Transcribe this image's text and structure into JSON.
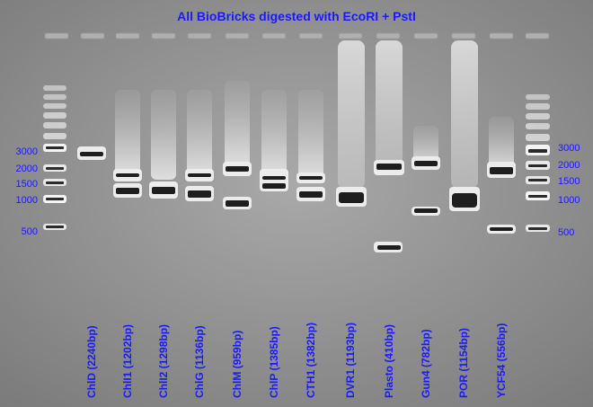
{
  "title": "All BioBricks digested with EcoRI + PstI",
  "ladder_labels_left": [
    "3000",
    "2000",
    "1500",
    "1000",
    "500"
  ],
  "ladder_labels_right": [
    "3000",
    "2000",
    "1500",
    "1000",
    "500"
  ],
  "lanes": [
    {
      "label": "ChlD (2240bp)"
    },
    {
      "label": "ChlI1 (1202bp)"
    },
    {
      "label": "ChlI2 (1298bp)"
    },
    {
      "label": "ChlG (1136bp)"
    },
    {
      "label": "ChlM (959bp)"
    },
    {
      "label": "ChlP (1385bp)"
    },
    {
      "label": "CTH1 (1382bp)"
    },
    {
      "label": "DVR1 (1193bp)"
    },
    {
      "label": "Plasto (410bp)"
    },
    {
      "label": "Gun4 (782bp)"
    },
    {
      "label": "POR (1154bp)"
    },
    {
      "label": "YCF54 (556bp)"
    }
  ],
  "colors": {
    "label_blue": "#1a1aff",
    "gel_bg": "#8c8c8c",
    "band": "#202020"
  }
}
